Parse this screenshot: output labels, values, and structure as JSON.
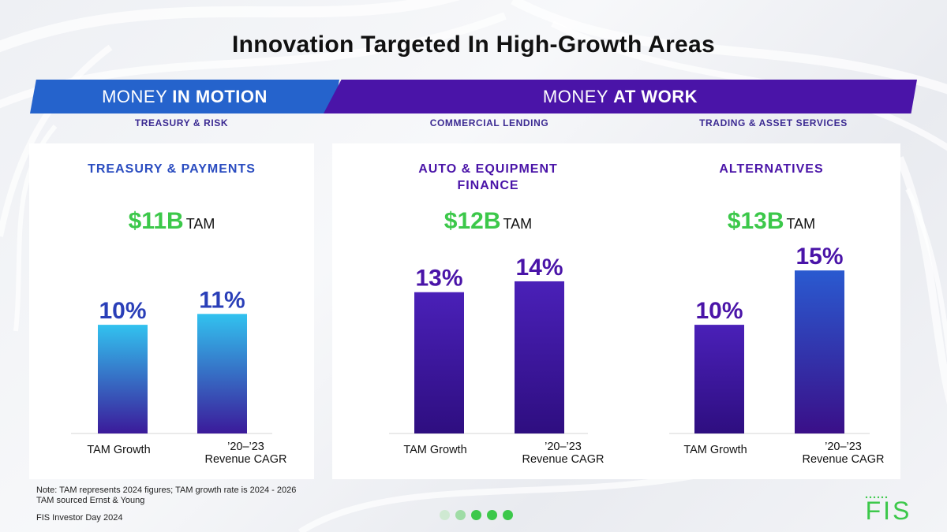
{
  "header": {
    "title": "Innovation Targeted In High-Growth Areas"
  },
  "banners": {
    "motion": {
      "prefix": "MONEY",
      "bold": "IN MOTION"
    },
    "work": {
      "prefix": "MONEY",
      "bold": "AT WORK"
    }
  },
  "subheaders": [
    "TREASURY & RISK",
    "COMMERCIAL LENDING",
    "TRADING & ASSET SERVICES"
  ],
  "chart_data": [
    {
      "type": "bar",
      "title": "TREASURY & PAYMENTS",
      "tam_amount": "$11B",
      "tam_label": "TAM",
      "categories": [
        "TAM Growth",
        "’20–’23 Revenue CAGR"
      ],
      "category_lines": [
        [
          "TAM Growth"
        ],
        [
          "’20–’23",
          "Revenue CAGR"
        ]
      ],
      "values": [
        10,
        11
      ],
      "value_labels": [
        "10%",
        "11%"
      ],
      "ylim": [
        0,
        20
      ]
    },
    {
      "type": "bar",
      "title": "AUTO & EQUIPMENT FINANCE",
      "title_lines": [
        "AUTO & EQUIPMENT",
        "FINANCE"
      ],
      "tam_amount": "$12B",
      "tam_label": "TAM",
      "categories": [
        "TAM Growth",
        "’20–’23 Revenue CAGR"
      ],
      "category_lines": [
        [
          "TAM Growth"
        ],
        [
          "’20–’23",
          "Revenue CAGR"
        ]
      ],
      "values": [
        13,
        14
      ],
      "value_labels": [
        "13%",
        "14%"
      ],
      "ylim": [
        0,
        20
      ]
    },
    {
      "type": "bar",
      "title": "ALTERNATIVES",
      "tam_amount": "$13B",
      "tam_label": "TAM",
      "categories": [
        "TAM Growth",
        "’20–’23 Revenue CAGR"
      ],
      "category_lines": [
        [
          "TAM Growth"
        ],
        [
          "’20–’23",
          "Revenue CAGR"
        ]
      ],
      "values": [
        10,
        15
      ],
      "value_labels": [
        "10%",
        "15%"
      ],
      "ylim": [
        0,
        20
      ]
    }
  ],
  "footer": {
    "note_line1": "Note: TAM represents 2024 figures; TAM growth rate is 2024 - 2026",
    "note_line2": "TAM sourced Ernst & Young",
    "source": "FIS Investor Day 2024"
  },
  "pagination": {
    "total": 5,
    "active": [
      2,
      3,
      4
    ]
  },
  "logo": {
    "text": "FIS"
  },
  "colors": {
    "blue": "#2563cc",
    "purple": "#4a14a8",
    "green": "#3cc84a",
    "value_label_left": "#2a3fb8",
    "value_label_purple": "#4a14a8"
  }
}
